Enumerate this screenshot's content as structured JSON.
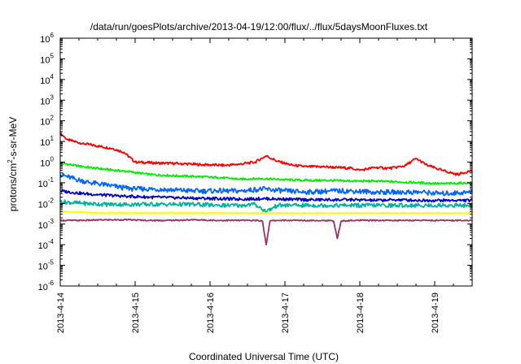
{
  "chart_data": {
    "type": "line",
    "title": "/data/run/goesPlots/archive/2013-04-19/12:00/flux/../flux/5daysMoonFluxes.txt",
    "xlabel": "Coordinated Universal Time (UTC)",
    "ylabel": "protons/cm²-s-sr-MeV",
    "ylabel_parts": {
      "pre": "protons/cm",
      "sup": "2",
      "post": "-s-sr-MeV"
    },
    "yscale": "log",
    "xlim": [
      "2013-4-14",
      "2013-4-19 12:00"
    ],
    "ylim": [
      1e-06,
      1000000.0
    ],
    "y_ticks": [
      {
        "value": 1e-06,
        "base": "10",
        "exp": "-6"
      },
      {
        "value": 1e-05,
        "base": "10",
        "exp": "-5"
      },
      {
        "value": 0.0001,
        "base": "10",
        "exp": "-4"
      },
      {
        "value": 0.001,
        "base": "10",
        "exp": "-3"
      },
      {
        "value": 0.01,
        "base": "10",
        "exp": "-2"
      },
      {
        "value": 0.1,
        "base": "10",
        "exp": "-1"
      },
      {
        "value": 1,
        "base": "10",
        "exp": "0"
      },
      {
        "value": 10,
        "base": "10",
        "exp": "1"
      },
      {
        "value": 100,
        "base": "10",
        "exp": "2"
      },
      {
        "value": 1000,
        "base": "10",
        "exp": "3"
      },
      {
        "value": 10000,
        "base": "10",
        "exp": "4"
      },
      {
        "value": 100000,
        "base": "10",
        "exp": "5"
      },
      {
        "value": 1000000,
        "base": "10",
        "exp": "6"
      }
    ],
    "x_ticks": [
      "2013-4-14",
      "2013-4-15",
      "2013-4-16",
      "2013-4-17",
      "2013-4-18",
      "2013-4-19"
    ],
    "grid": false,
    "legend": "none",
    "series": [
      {
        "color": "#ff0000",
        "x": [
          0,
          0.1,
          0.3,
          0.5,
          0.7,
          0.85,
          1.0,
          1.3,
          1.6,
          1.9,
          2.2,
          2.4,
          2.6,
          2.75,
          2.9,
          3.1,
          3.3,
          3.5,
          3.7,
          3.9,
          4.0,
          4.2,
          4.4,
          4.6,
          4.75,
          4.9,
          5.1,
          5.3,
          5.5
        ],
        "y": [
          25,
          12,
          8,
          6,
          4.5,
          3,
          1.0,
          0.9,
          0.85,
          0.75,
          0.7,
          0.8,
          1.0,
          2.0,
          1.1,
          0.7,
          0.6,
          0.6,
          0.55,
          0.5,
          0.4,
          0.55,
          0.5,
          0.65,
          1.5,
          0.7,
          0.4,
          0.25,
          0.4
        ]
      },
      {
        "color": "#00ee00",
        "x": [
          0,
          0.3,
          0.6,
          0.9,
          1.2,
          1.5,
          1.8,
          2.1,
          2.4,
          2.7,
          3.0,
          3.3,
          3.6,
          3.9,
          4.2,
          4.5,
          4.8,
          5.1,
          5.5
        ],
        "y": [
          0.9,
          0.6,
          0.45,
          0.35,
          0.25,
          0.22,
          0.2,
          0.18,
          0.15,
          0.16,
          0.14,
          0.13,
          0.13,
          0.12,
          0.12,
          0.11,
          0.1,
          0.09,
          0.1
        ]
      },
      {
        "color": "#0066ff",
        "x": [
          0,
          0.2,
          0.4,
          0.6,
          0.8,
          1.0,
          1.2,
          1.5,
          1.8,
          2.1,
          2.4,
          2.7,
          3.0,
          3.3,
          3.6,
          3.9,
          4.2,
          4.5,
          4.8,
          5.1,
          5.5
        ],
        "y": [
          0.25,
          0.15,
          0.1,
          0.08,
          0.06,
          0.05,
          0.05,
          0.045,
          0.04,
          0.04,
          0.04,
          0.05,
          0.04,
          0.035,
          0.04,
          0.04,
          0.035,
          0.035,
          0.035,
          0.03,
          0.035
        ]
      },
      {
        "color": "#0000cc",
        "x": [
          0,
          0.3,
          0.6,
          0.9,
          1.2,
          1.5,
          1.8,
          2.1,
          2.4,
          2.7,
          3.0,
          3.3,
          3.6,
          3.9,
          4.2,
          4.5,
          4.8,
          5.1,
          5.5
        ],
        "y": [
          0.04,
          0.03,
          0.025,
          0.022,
          0.02,
          0.019,
          0.018,
          0.017,
          0.016,
          0.017,
          0.016,
          0.015,
          0.015,
          0.015,
          0.014,
          0.015,
          0.014,
          0.014,
          0.014
        ]
      },
      {
        "color": "#00b3a0",
        "x": [
          0,
          0.3,
          0.6,
          0.9,
          1.2,
          1.5,
          1.8,
          2.1,
          2.4,
          2.6,
          2.75,
          2.9,
          3.1,
          3.3,
          3.6,
          3.9,
          4.2,
          4.5,
          4.8,
          5.1,
          5.5
        ],
        "y": [
          0.012,
          0.01,
          0.009,
          0.009,
          0.009,
          0.009,
          0.009,
          0.008,
          0.008,
          0.009,
          0.004,
          0.008,
          0.008,
          0.008,
          0.008,
          0.008,
          0.008,
          0.008,
          0.008,
          0.008,
          0.008
        ]
      },
      {
        "color": "#ffff00",
        "x": [
          0,
          0.5,
          1.0,
          1.5,
          2.0,
          2.5,
          3.0,
          3.5,
          4.0,
          4.5,
          5.0,
          5.5
        ],
        "y": [
          0.004,
          0.0035,
          0.0035,
          0.0035,
          0.0035,
          0.0034,
          0.0034,
          0.0034,
          0.0034,
          0.0034,
          0.0034,
          0.0034
        ]
      },
      {
        "color": "#993366",
        "x": [
          0,
          0.3,
          0.6,
          0.9,
          1.2,
          1.5,
          1.8,
          2.1,
          2.4,
          2.6,
          2.7,
          2.75,
          2.8,
          2.9,
          3.1,
          3.3,
          3.5,
          3.65,
          3.7,
          3.75,
          3.9,
          4.2,
          4.5,
          4.8,
          5.1,
          5.5
        ],
        "y": [
          0.0015,
          0.0015,
          0.0016,
          0.0016,
          0.0015,
          0.0015,
          0.0016,
          0.0015,
          0.0015,
          0.0015,
          0.0014,
          0.0001,
          0.0014,
          0.0015,
          0.0015,
          0.0015,
          0.0015,
          0.0014,
          0.0002,
          0.0014,
          0.0015,
          0.0015,
          0.0015,
          0.0015,
          0.0015,
          0.0015
        ]
      }
    ]
  }
}
